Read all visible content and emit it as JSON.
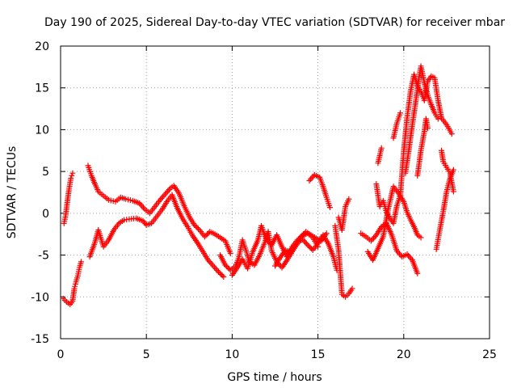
{
  "colors": {
    "background": "#ffffff",
    "axis": "#000000",
    "grid": "#a0a0a0",
    "series": "#ff0000"
  },
  "chart_data": {
    "type": "scatter",
    "title": "Day 190 of 2025, Sidereal Day-to-day VTEC variation (SDTVAR) for receiver mbar",
    "xlabel": "GPS time / hours",
    "ylabel": "SDTVAR / TECUs",
    "xlim": [
      0,
      25
    ],
    "ylim": [
      -15,
      20
    ],
    "xticks": [
      0,
      5,
      10,
      15,
      20,
      25
    ],
    "yticks": [
      -15,
      -10,
      -5,
      0,
      5,
      10,
      15,
      20
    ],
    "grid": true,
    "legend": "none",
    "marker": "plus",
    "series": [
      {
        "name": "SDTVAR",
        "segments": [
          [
            [
              0.15,
              -10.2
            ],
            [
              0.35,
              -10.6
            ],
            [
              0.55,
              -10.9
            ],
            [
              0.7,
              -10.5
            ],
            [
              0.8,
              -9.0
            ],
            [
              0.9,
              -8.2
            ],
            [
              1.0,
              -7.5
            ],
            [
              1.1,
              -6.5
            ],
            [
              1.2,
              -5.8
            ]
          ],
          [
            [
              0.2,
              -1.2
            ],
            [
              0.3,
              -0.2
            ],
            [
              0.4,
              1.5
            ],
            [
              0.5,
              3.0
            ],
            [
              0.6,
              4.2
            ],
            [
              0.7,
              4.8
            ]
          ],
          [
            [
              1.6,
              5.7
            ],
            [
              1.8,
              4.5
            ],
            [
              2.0,
              3.5
            ],
            [
              2.2,
              2.6
            ],
            [
              2.5,
              2.1
            ],
            [
              2.8,
              1.6
            ],
            [
              3.2,
              1.4
            ],
            [
              3.5,
              1.9
            ],
            [
              3.8,
              1.7
            ],
            [
              4.2,
              1.5
            ],
            [
              4.6,
              1.2
            ],
            [
              4.9,
              0.5
            ],
            [
              5.2,
              0.0
            ],
            [
              5.5,
              0.8
            ],
            [
              5.8,
              1.6
            ],
            [
              6.1,
              2.3
            ],
            [
              6.4,
              3.0
            ],
            [
              6.6,
              3.3
            ],
            [
              6.9,
              2.4
            ],
            [
              7.2,
              0.9
            ],
            [
              7.5,
              -0.4
            ],
            [
              7.8,
              -1.4
            ],
            [
              8.1,
              -2.0
            ],
            [
              8.4,
              -2.8
            ],
            [
              8.7,
              -2.2
            ],
            [
              9.0,
              -2.5
            ],
            [
              9.3,
              -2.9
            ],
            [
              9.6,
              -3.3
            ],
            [
              9.9,
              -4.8
            ]
          ],
          [
            [
              1.7,
              -5.2
            ],
            [
              2.0,
              -3.5
            ],
            [
              2.2,
              -2.0
            ],
            [
              2.5,
              -4.0
            ],
            [
              2.8,
              -3.2
            ],
            [
              3.1,
              -2.0
            ],
            [
              3.4,
              -1.2
            ],
            [
              3.7,
              -0.8
            ],
            [
              4.0,
              -0.7
            ],
            [
              4.4,
              -0.6
            ],
            [
              4.8,
              -0.9
            ],
            [
              5.0,
              -1.4
            ],
            [
              5.3,
              -1.2
            ],
            [
              5.6,
              -0.4
            ],
            [
              5.9,
              0.4
            ],
            [
              6.2,
              1.4
            ],
            [
              6.5,
              2.2
            ],
            [
              6.8,
              0.6
            ],
            [
              7.1,
              -0.6
            ],
            [
              7.4,
              -1.6
            ],
            [
              7.7,
              -2.7
            ],
            [
              8.0,
              -3.6
            ],
            [
              8.3,
              -4.6
            ],
            [
              8.6,
              -5.6
            ],
            [
              8.9,
              -6.3
            ],
            [
              9.2,
              -7.0
            ],
            [
              9.5,
              -7.6
            ]
          ],
          [
            [
              9.3,
              -5.0
            ],
            [
              9.6,
              -6.2
            ],
            [
              9.9,
              -6.8
            ],
            [
              10.2,
              -6.3
            ],
            [
              10.4,
              -5.2
            ],
            [
              10.6,
              -3.2
            ],
            [
              10.8,
              -4.4
            ],
            [
              11.0,
              -5.8
            ],
            [
              11.3,
              -6.2
            ],
            [
              11.6,
              -5.0
            ],
            [
              11.9,
              -3.5
            ],
            [
              12.1,
              -2.2
            ],
            [
              12.3,
              -4.5
            ],
            [
              12.6,
              -5.8
            ],
            [
              12.9,
              -6.5
            ],
            [
              13.2,
              -5.6
            ],
            [
              13.5,
              -4.6
            ],
            [
              13.8,
              -3.6
            ],
            [
              14.1,
              -3.1
            ],
            [
              14.4,
              -3.8
            ],
            [
              14.7,
              -4.4
            ],
            [
              15.0,
              -3.6
            ],
            [
              15.3,
              -2.6
            ],
            [
              15.6,
              -3.6
            ],
            [
              15.9,
              -5.2
            ],
            [
              16.1,
              -6.8
            ]
          ],
          [
            [
              10.0,
              -7.4
            ],
            [
              10.3,
              -6.5
            ],
            [
              10.6,
              -5.5
            ],
            [
              10.9,
              -6.6
            ],
            [
              11.2,
              -4.6
            ],
            [
              11.5,
              -3.2
            ],
            [
              11.7,
              -1.5
            ],
            [
              12.0,
              -3.2
            ],
            [
              12.3,
              -3.8
            ],
            [
              12.6,
              -2.6
            ],
            [
              12.9,
              -4.0
            ],
            [
              13.2,
              -5.2
            ],
            [
              13.5,
              -4.0
            ],
            [
              13.8,
              -3.2
            ],
            [
              14.1,
              -2.7
            ],
            [
              14.4,
              -2.4
            ],
            [
              14.7,
              -2.9
            ],
            [
              15.0,
              -4.0
            ]
          ],
          [
            [
              12.5,
              -6.3
            ],
            [
              12.8,
              -5.3
            ],
            [
              13.1,
              -4.4
            ],
            [
              13.4,
              -4.7
            ],
            [
              13.7,
              -3.8
            ],
            [
              14.0,
              -2.8
            ],
            [
              14.3,
              -2.2
            ],
            [
              14.6,
              -2.6
            ],
            [
              14.9,
              -3.0
            ],
            [
              15.2,
              -3.3
            ],
            [
              15.5,
              -2.4
            ]
          ],
          [
            [
              14.5,
              3.9
            ],
            [
              14.8,
              4.6
            ],
            [
              15.1,
              4.3
            ],
            [
              15.3,
              3.2
            ],
            [
              15.5,
              1.9
            ],
            [
              15.7,
              0.7
            ]
          ],
          [
            [
              16.0,
              -1.5
            ],
            [
              16.2,
              -4.4
            ],
            [
              16.4,
              -9.7
            ],
            [
              16.6,
              -10.0
            ],
            [
              16.8,
              -9.6
            ],
            [
              17.0,
              -9.0
            ]
          ],
          [
            [
              16.2,
              -0.5
            ],
            [
              16.4,
              -2.0
            ],
            [
              16.6,
              0.8
            ],
            [
              16.8,
              1.7
            ]
          ],
          [
            [
              17.5,
              -2.4
            ],
            [
              17.8,
              -2.8
            ],
            [
              18.1,
              -3.3
            ],
            [
              18.4,
              -2.6
            ],
            [
              18.7,
              -1.6
            ],
            [
              19.0,
              -1.2
            ],
            [
              19.3,
              -2.6
            ],
            [
              19.6,
              -4.5
            ],
            [
              19.9,
              -5.2
            ],
            [
              20.2,
              -4.9
            ],
            [
              20.5,
              -5.6
            ],
            [
              20.8,
              -7.2
            ]
          ],
          [
            [
              17.9,
              -4.6
            ],
            [
              18.2,
              -5.6
            ],
            [
              18.5,
              -4.2
            ],
            [
              18.8,
              -2.8
            ],
            [
              19.1,
              0.6
            ],
            [
              19.4,
              3.2
            ],
            [
              19.7,
              2.4
            ],
            [
              20.0,
              1.4
            ],
            [
              20.2,
              0.1
            ],
            [
              20.4,
              -0.8
            ],
            [
              20.6,
              -1.6
            ],
            [
              20.8,
              -2.6
            ],
            [
              21.0,
              -2.9
            ]
          ],
          [
            [
              18.4,
              3.5
            ],
            [
              18.6,
              0.8
            ],
            [
              18.8,
              1.5
            ],
            [
              19.0,
              0.1
            ],
            [
              19.2,
              -0.6
            ],
            [
              19.4,
              -1.2
            ],
            [
              19.6,
              0.9
            ],
            [
              19.8,
              2.2
            ],
            [
              20.0,
              7.4
            ],
            [
              20.2,
              11.5
            ],
            [
              20.4,
              14.6
            ],
            [
              20.6,
              16.6
            ],
            [
              20.8,
              15.3
            ],
            [
              21.0,
              14.6
            ],
            [
              21.2,
              13.5
            ],
            [
              21.4,
              15.8
            ],
            [
              21.6,
              16.4
            ],
            [
              21.8,
              16.2
            ],
            [
              22.0,
              13.5
            ],
            [
              22.2,
              11.4
            ],
            [
              22.5,
              10.6
            ],
            [
              22.8,
              9.5
            ]
          ],
          [
            [
              18.5,
              6.0
            ],
            [
              18.7,
              7.8
            ]
          ],
          [
            [
              19.4,
              9.0
            ],
            [
              19.6,
              10.8
            ],
            [
              19.8,
              12.0
            ]
          ],
          [
            [
              20.1,
              4.8
            ],
            [
              20.3,
              7.6
            ],
            [
              20.5,
              10.6
            ],
            [
              20.7,
              13.4
            ],
            [
              20.9,
              16.4
            ],
            [
              21.0,
              17.6
            ],
            [
              21.2,
              15.6
            ],
            [
              21.4,
              14.1
            ],
            [
              21.6,
              13.0
            ],
            [
              21.8,
              12.0
            ],
            [
              22.0,
              11.3
            ]
          ],
          [
            [
              20.8,
              4.5
            ],
            [
              21.0,
              7.5
            ],
            [
              21.2,
              9.8
            ],
            [
              21.3,
              11.3
            ],
            [
              21.4,
              10.2
            ]
          ],
          [
            [
              21.9,
              -4.3
            ],
            [
              22.1,
              -2.0
            ],
            [
              22.3,
              0.2
            ],
            [
              22.5,
              2.6
            ],
            [
              22.7,
              4.2
            ],
            [
              22.9,
              5.2
            ]
          ],
          [
            [
              22.2,
              7.5
            ],
            [
              22.3,
              6.2
            ],
            [
              22.5,
              5.5
            ],
            [
              22.7,
              4.8
            ],
            [
              22.9,
              2.6
            ]
          ]
        ]
      }
    ]
  }
}
